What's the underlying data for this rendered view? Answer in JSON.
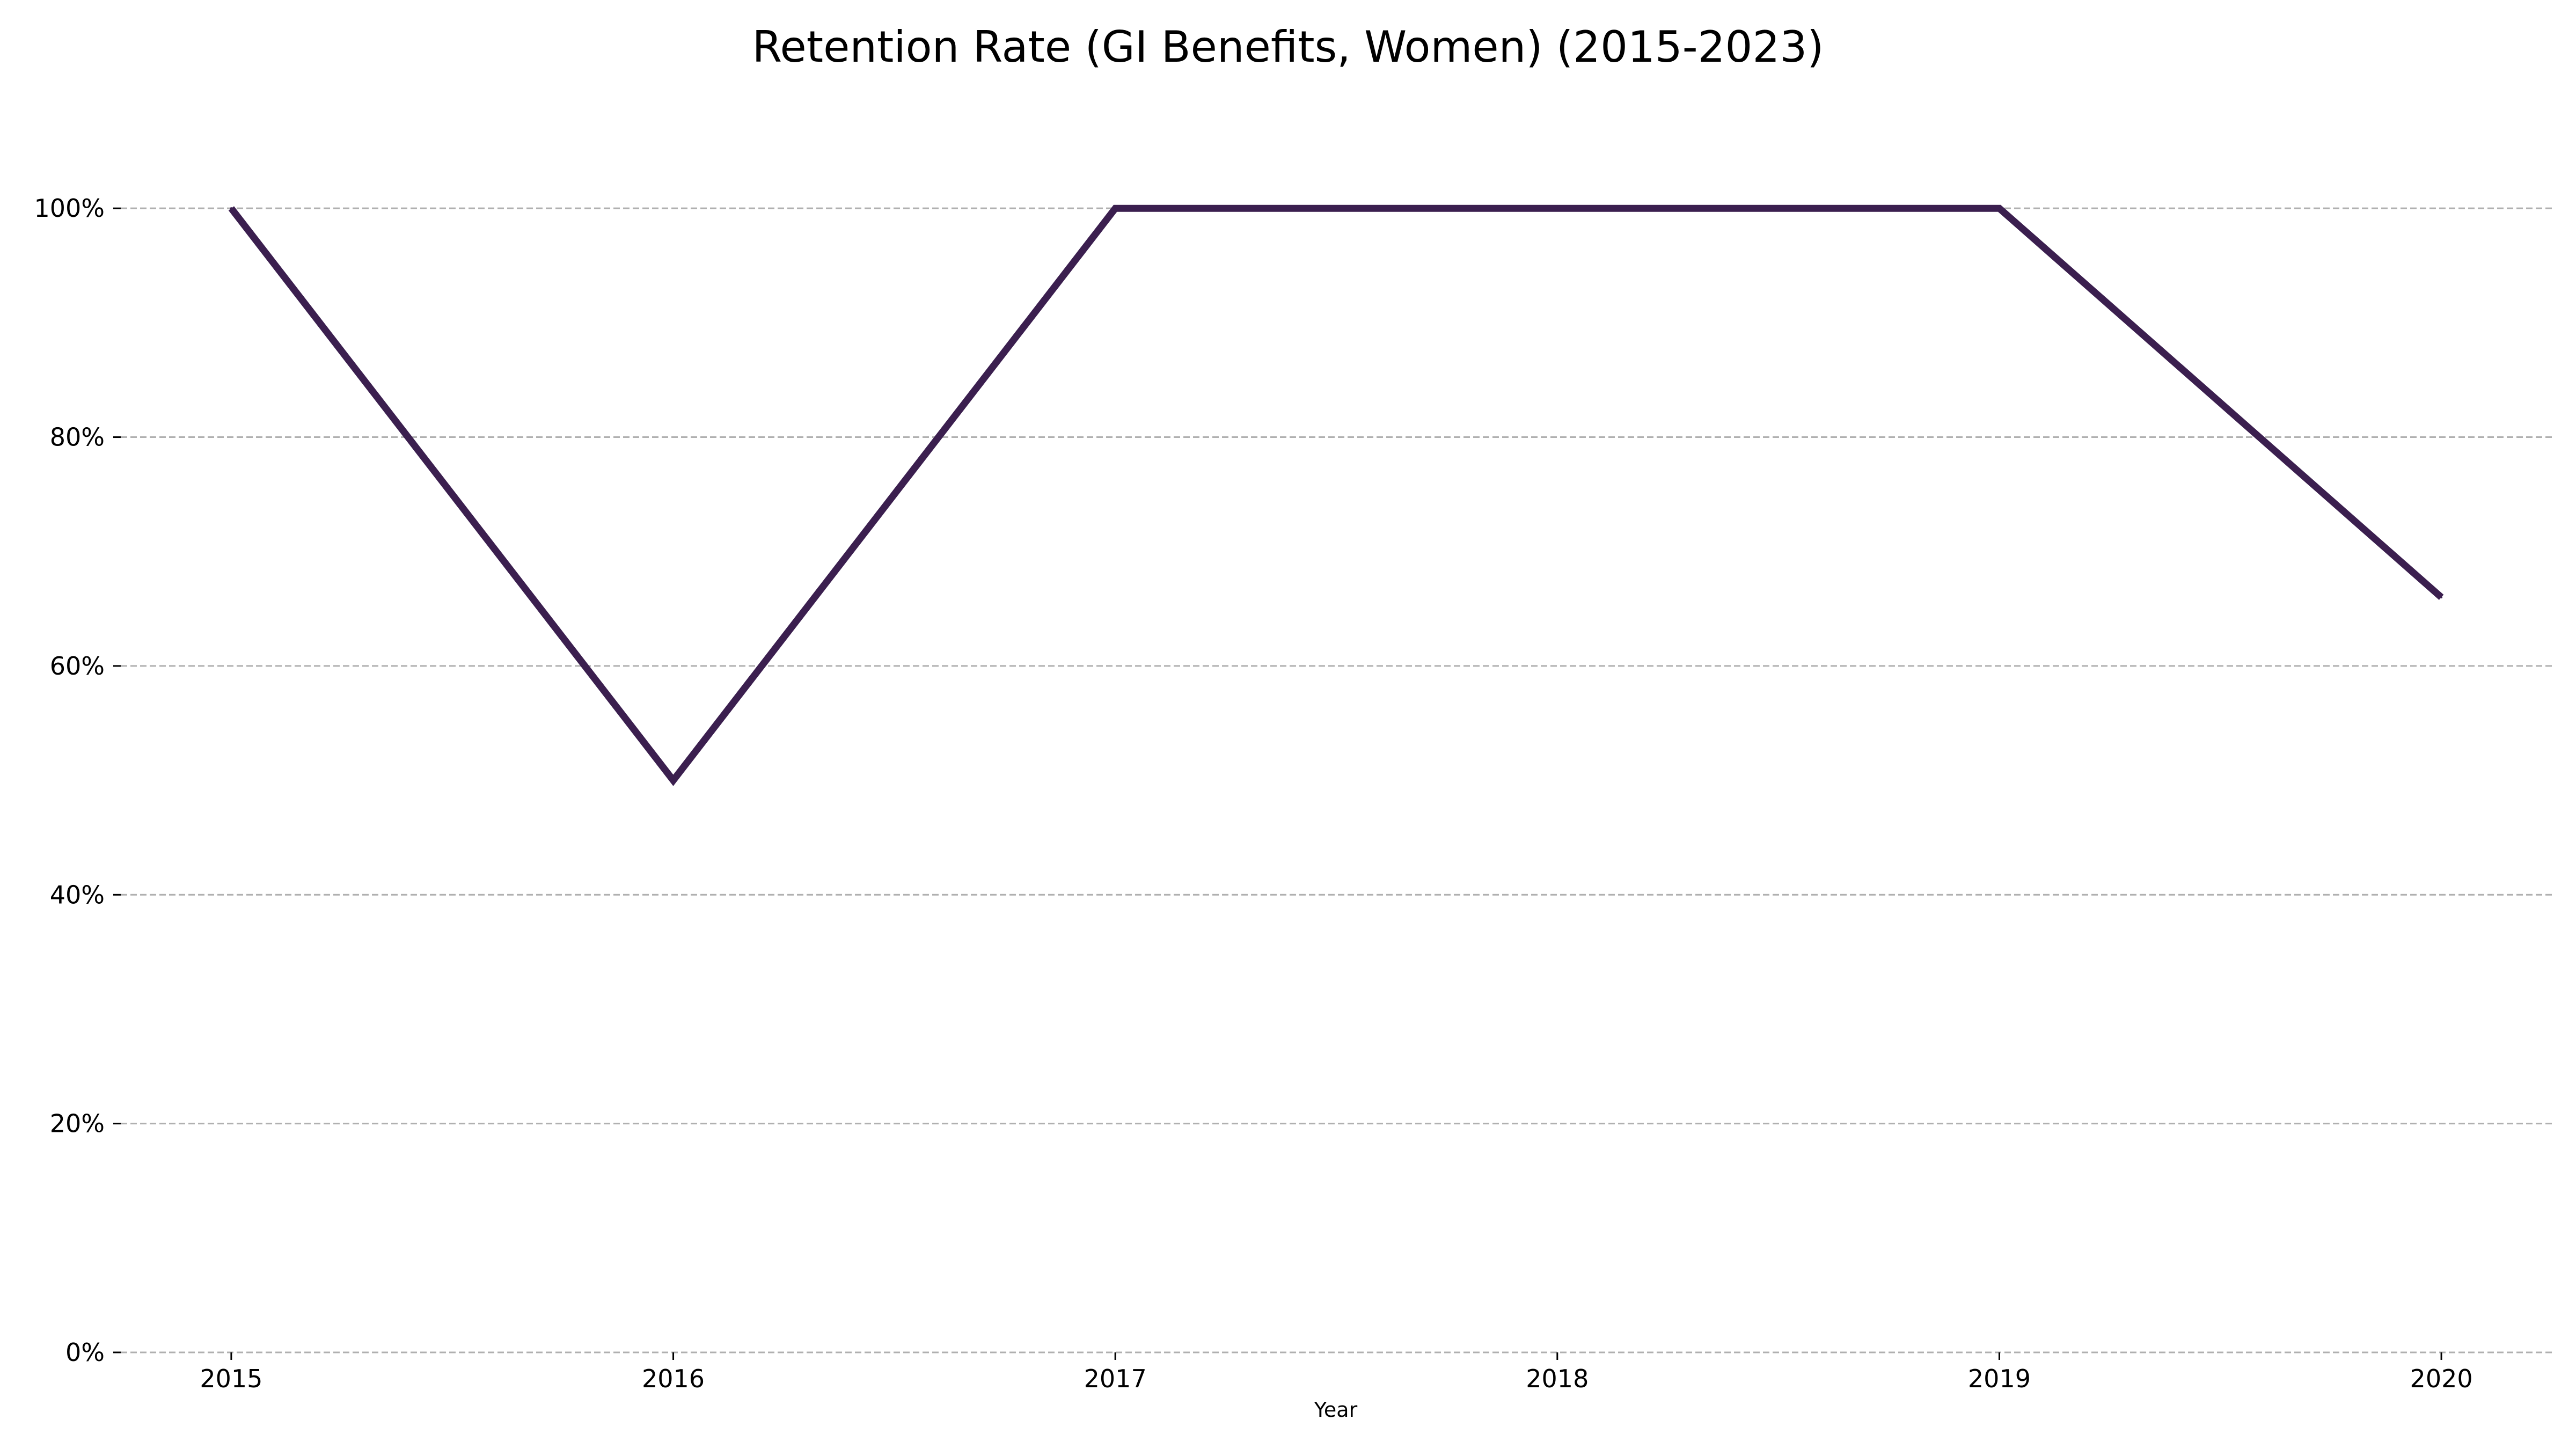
{
  "chart_data": {
    "type": "line",
    "title": "Retention Rate (GI Benefits, Women) (2015-2023)",
    "xlabel": "Year",
    "ylabel": "",
    "x": [
      "2015",
      "2016",
      "2017",
      "2018",
      "2019",
      "2020"
    ],
    "series": [
      {
        "values": [
          100,
          50,
          100,
          100,
          100,
          66
        ],
        "color": "#3b1f4f"
      }
    ],
    "y_ticks": [
      0,
      20,
      40,
      60,
      80,
      100
    ],
    "y_tick_labels": [
      "0%",
      "20%",
      "40%",
      "60%",
      "80%",
      "100%"
    ],
    "ylim": [
      0,
      110
    ],
    "xlim": [
      -0.25,
      5.25
    ],
    "grid": "horizontal dashed",
    "legend": "none"
  }
}
